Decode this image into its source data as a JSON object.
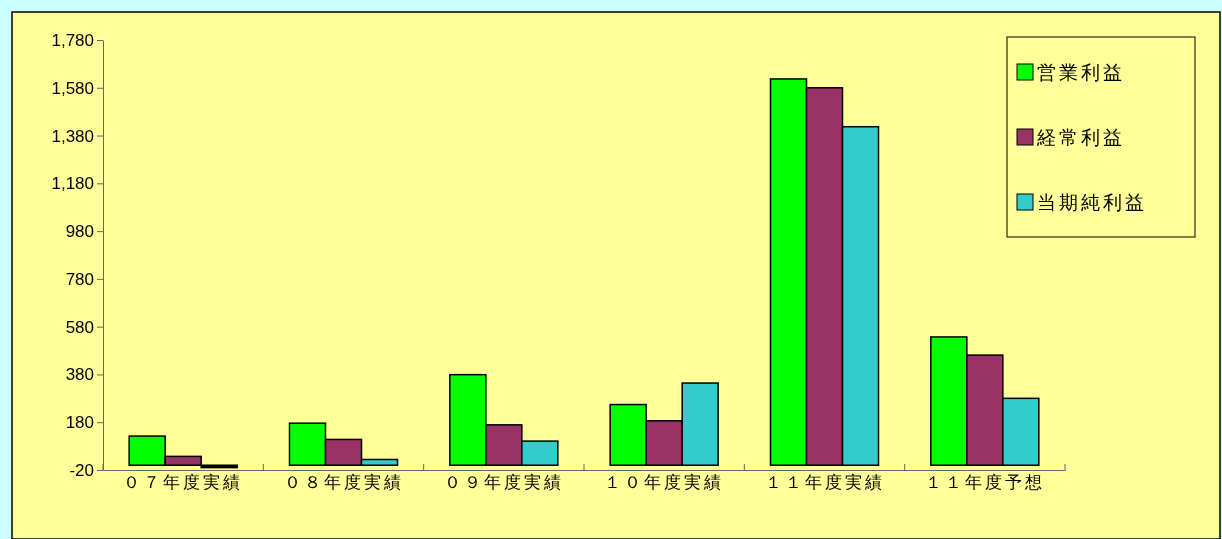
{
  "chart_data": {
    "type": "bar",
    "categories": [
      "０７年度実績",
      "０８年度実績",
      "０９年度実績",
      "１０年度実績",
      "１１年度実績",
      "１１年度予想"
    ],
    "series": [
      {
        "name": "営業利益",
        "color": "#00ff00",
        "values": [
          122,
          176,
          379,
          254,
          1617,
          537
        ]
      },
      {
        "name": "経常利益",
        "color": "#993366",
        "values": [
          37,
          108,
          169,
          186,
          1580,
          461
        ]
      },
      {
        "name": "当期純利益",
        "color": "#33cccc",
        "colors": [
          "#000000",
          "#33cccc",
          "#33cccc",
          "#33cccc",
          "#33cccc",
          "#33cccc"
        ],
        "values": [
          -10,
          24,
          101,
          344,
          1417,
          280
        ]
      }
    ],
    "ylim": [
      -20,
      1780
    ],
    "yticks": [
      -20,
      180,
      380,
      580,
      780,
      980,
      {
        "value": 1180,
        "label": "1,180"
      },
      {
        "value": 1380,
        "label": "1,380"
      },
      {
        "value": 1580,
        "label": "1,580"
      },
      {
        "value": 1780,
        "label": "1,780"
      }
    ],
    "grid": false,
    "legend": "top right"
  }
}
